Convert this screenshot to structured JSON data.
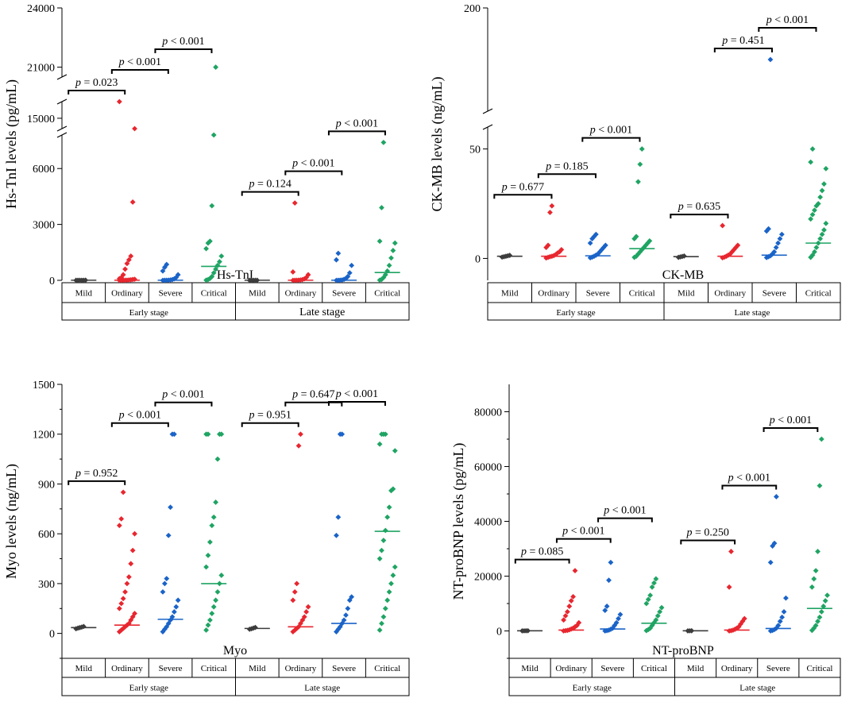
{
  "colors": {
    "Mild": "#3c3c3c",
    "Ordinary": "#e8262f",
    "Severe": "#1a63c8",
    "Critical": "#1fa463"
  },
  "chart_data": [
    {
      "type": "scatter",
      "name": "Hs-TnI",
      "ylabel": "Hs-TnI levels (pg/mL)",
      "ylim": [
        -1000,
        24000
      ],
      "axis_breaks": [
        [
          7800,
          14500
        ],
        [
          15800,
          20500
        ]
      ],
      "yticks": [
        0,
        3000,
        6000,
        15000,
        21000,
        24000
      ],
      "ytick_labels": [
        "0",
        "3000",
        "6000",
        "15000",
        "21000",
        "24000"
      ],
      "groups": [
        "Mild",
        "Ordinary",
        "Severe",
        "Critical"
      ],
      "stages": [
        "Early stage",
        "Late stage"
      ],
      "medians": {
        "Early stage": [
          5,
          5,
          5,
          750
        ],
        "Late stage": [
          5,
          5,
          5,
          420
        ]
      },
      "points": {
        "Early stage": {
          "Mild": [
            2,
            3,
            4,
            5,
            6,
            8
          ],
          "Ordinary": [
            0,
            2,
            5,
            8,
            12,
            20,
            30,
            45,
            60,
            90,
            150,
            300,
            600,
            900,
            1100,
            1300,
            4200,
            12000,
            16600
          ],
          "Severe": [
            0,
            3,
            6,
            10,
            20,
            40,
            80,
            150,
            300,
            500,
            700,
            850
          ],
          "Critical": [
            10,
            40,
            100,
            200,
            400,
            600,
            800,
            1000,
            1300,
            1700,
            2000,
            2100,
            4000,
            8500,
            21000
          ]
        },
        "Late stage": {
          "Mild": [
            2,
            3,
            4,
            5,
            6
          ],
          "Ordinary": [
            0,
            2,
            5,
            10,
            20,
            40,
            80,
            150,
            300,
            450,
            4150
          ],
          "Severe": [
            0,
            3,
            8,
            20,
            50,
            100,
            200,
            400,
            800,
            1100,
            1450
          ],
          "Critical": [
            10,
            50,
            150,
            300,
            500,
            800,
            1200,
            1600,
            2000,
            2100,
            3900,
            7400
          ]
        }
      },
      "comparisons": {
        "Early stage": [
          "p = 0.023",
          "p < 0.001",
          "p < 0.001"
        ],
        "Late stage": [
          "p = 0.124",
          "p < 0.001",
          "p < 0.001"
        ]
      }
    },
    {
      "type": "scatter",
      "name": "CK-MB",
      "ylabel": "CK-MB levels (ng/mL)",
      "ylim": [
        -10,
        200
      ],
      "axis_breaks": [
        [
          60,
          150
        ]
      ],
      "yticks": [
        0,
        50,
        200
      ],
      "ytick_labels": [
        "0",
        "50",
        "200"
      ],
      "groups": [
        "Mild",
        "Ordinary",
        "Severe",
        "Critical"
      ],
      "stages": [
        "Early stage",
        "Late stage"
      ],
      "medians": {
        "Early stage": [
          1.0,
          1.0,
          1.2,
          4.5
        ],
        "Late stage": [
          0.8,
          1.0,
          1.5,
          7.0
        ]
      },
      "points": {
        "Early stage": {
          "Mild": [
            0.6,
            0.8,
            1.0,
            1.2,
            1.4
          ],
          "Ordinary": [
            0.2,
            0.5,
            0.8,
            1.0,
            1.3,
            1.8,
            2.5,
            3.0,
            4.0,
            5.0,
            6.0,
            21,
            24
          ],
          "Severe": [
            0.3,
            0.6,
            1.0,
            1.5,
            2.0,
            3.0,
            4.0,
            5.0,
            6.0,
            7.0,
            9.0,
            10.0,
            11.0
          ],
          "Critical": [
            0.5,
            1.0,
            2.0,
            3.0,
            4.0,
            5.0,
            6.0,
            7.0,
            8.0,
            9.0,
            10.0,
            35,
            43,
            50
          ]
        },
        "Late stage": {
          "Mild": [
            0.5,
            0.7,
            0.9,
            1.1
          ],
          "Ordinary": [
            0.3,
            0.6,
            1.0,
            1.5,
            2.0,
            3.0,
            4.0,
            5.0,
            6.0,
            15
          ],
          "Severe": [
            0.4,
            0.8,
            1.2,
            2.0,
            3.0,
            5.0,
            7.0,
            9.0,
            11.0,
            12.5,
            13.5,
            175
          ],
          "Critical": [
            0.5,
            1.5,
            3.0,
            5.0,
            7.0,
            9.0,
            11.0,
            13.0,
            16.0,
            18.0,
            20.0,
            22.0,
            24.0,
            25.0,
            28.0,
            31.0,
            34.0,
            41.0,
            44.0,
            50.0
          ]
        }
      },
      "comparisons": {
        "Early stage": [
          "p = 0.677",
          "p = 0.185",
          "p < 0.001"
        ],
        "Late stage": [
          "p = 0.635",
          "p = 0.451",
          "p < 0.001"
        ]
      }
    },
    {
      "type": "scatter",
      "name": "Myo",
      "ylabel": "Myo levels (ng/mL)",
      "ylim": [
        -150,
        1500
      ],
      "yticks": [
        0,
        300,
        600,
        900,
        1200,
        1500
      ],
      "ytick_labels": [
        "0",
        "300",
        "600",
        "900",
        "1200",
        "1500"
      ],
      "groups": [
        "Mild",
        "Ordinary",
        "Severe",
        "Critical"
      ],
      "stages": [
        "Early stage",
        "Late stage"
      ],
      "medians": {
        "Early stage": [
          35,
          50,
          85,
          300
        ],
        "Late stage": [
          30,
          40,
          60,
          615
        ]
      },
      "points": {
        "Early stage": {
          "Mild": [
            28,
            32,
            35,
            38,
            42
          ],
          "Ordinary": [
            10,
            20,
            30,
            40,
            50,
            60,
            80,
            100,
            120,
            150,
            180,
            210,
            250,
            300,
            340,
            420,
            500,
            600,
            650,
            690,
            850
          ],
          "Severe": [
            10,
            25,
            40,
            60,
            80,
            100,
            130,
            160,
            200,
            250,
            300,
            330,
            590,
            760,
            1200,
            1200
          ],
          "Critical": [
            20,
            50,
            80,
            120,
            160,
            200,
            250,
            300,
            350,
            400,
            470,
            550,
            650,
            700,
            790,
            1050,
            1200,
            1200,
            1200,
            1200
          ]
        },
        "Late stage": {
          "Mild": [
            25,
            28,
            32,
            36
          ],
          "Ordinary": [
            10,
            20,
            30,
            40,
            60,
            80,
            100,
            130,
            160,
            200,
            250,
            300,
            1130,
            1200
          ],
          "Severe": [
            10,
            25,
            40,
            60,
            80,
            110,
            150,
            200,
            220,
            590,
            700,
            1200,
            1200
          ],
          "Critical": [
            20,
            60,
            100,
            150,
            200,
            250,
            300,
            350,
            400,
            450,
            500,
            560,
            620,
            700,
            760,
            860,
            870,
            1100,
            1140,
            1200,
            1200,
            1200
          ]
        }
      },
      "comparisons": {
        "Early stage": [
          "p = 0.952",
          "p < 0.001",
          "p < 0.001"
        ],
        "Late stage": [
          "p = 0.951",
          "p = 0.647",
          "p < 0.001"
        ]
      }
    },
    {
      "type": "scatter",
      "name": "NT-proBNP",
      "ylabel": "NT-proBNP levels (pg/mL)",
      "ylim": [
        -10000,
        90000
      ],
      "yticks": [
        0,
        20000,
        40000,
        60000,
        80000
      ],
      "ytick_labels": [
        "0",
        "20000",
        "40000",
        "60000",
        "80000"
      ],
      "groups": [
        "Mild",
        "Ordinary",
        "Severe",
        "Critical"
      ],
      "stages": [
        "Early stage",
        "Late stage"
      ],
      "medians": {
        "Early stage": [
          50,
          300,
          700,
          2800
        ],
        "Late stage": [
          50,
          300,
          900,
          8200
        ]
      },
      "points": {
        "Early stage": {
          "Mild": [
            20,
            40,
            60,
            80
          ],
          "Ordinary": [
            0,
            100,
            200,
            400,
            700,
            1000,
            1500,
            2000,
            3000,
            4000,
            5500,
            7000,
            9000,
            11000,
            12500,
            22000
          ],
          "Severe": [
            0,
            100,
            300,
            600,
            1000,
            2000,
            3000,
            4500,
            6000,
            7500,
            9000,
            18500,
            25000
          ],
          "Critical": [
            100,
            500,
            1000,
            2000,
            3000,
            4000,
            5500,
            7000,
            8500,
            10000,
            11500,
            13000,
            16000,
            17500,
            19000
          ]
        },
        "Late stage": {
          "Mild": [
            20,
            40,
            60
          ],
          "Ordinary": [
            0,
            100,
            300,
            600,
            1000,
            1500,
            2500,
            3500,
            4500,
            16000,
            29000
          ],
          "Severe": [
            0,
            200,
            500,
            1000,
            2000,
            3500,
            5000,
            7000,
            12000,
            25000,
            31000,
            32000,
            49000
          ],
          "Critical": [
            200,
            1000,
            2000,
            3500,
            5000,
            7000,
            9000,
            11000,
            13000,
            16000,
            19000,
            22000,
            29000,
            53000,
            70000
          ]
        }
      },
      "comparisons": {
        "Early stage": [
          "p = 0.085",
          "p < 0.001",
          "p < 0.001"
        ],
        "Late stage": [
          "p = 0.250",
          "p < 0.001",
          "p < 0.001"
        ]
      }
    }
  ]
}
